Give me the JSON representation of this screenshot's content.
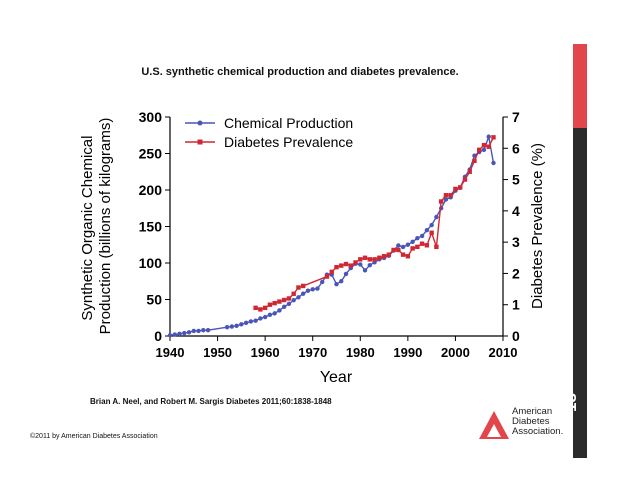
{
  "slide": {
    "title": "U.S. synthetic chemical production and diabetes prevalence.",
    "citation": "Brian A. Neel, and Robert M. Sargis Diabetes 2011;60:1838-1848",
    "copyright": "©2011 by American Diabetes Association",
    "logo_lines": [
      "American",
      "Diabetes",
      "Association."
    ],
    "slide_number": "18"
  },
  "colors": {
    "chemical": "#4a55b8",
    "diabetes": "#d02832",
    "accent_red": "#e2464c",
    "accent_dark": "#2b2b2b"
  },
  "chart_data": {
    "type": "line",
    "title": "",
    "xlabel": "Year",
    "ylabel_left": "Synthetic Organic Chemical Production (billions of kilograms)",
    "ylabel_right": "Diabetes Prevalence (%)",
    "xlim": [
      1940,
      2010
    ],
    "ylim_left": [
      0,
      300
    ],
    "ylim_right": [
      0,
      7
    ],
    "x_ticks": [
      1940,
      1950,
      1960,
      1970,
      1980,
      1990,
      2000,
      2010
    ],
    "y_ticks_left": [
      0,
      50,
      100,
      150,
      200,
      250,
      300
    ],
    "y_ticks_right": [
      0,
      1,
      2,
      3,
      4,
      5,
      6,
      7
    ],
    "grid": false,
    "legend_position": "top-left",
    "series": [
      {
        "name": "Chemical Production",
        "axis": "left",
        "marker": "circle",
        "x": [
          1940,
          1941,
          1942,
          1943,
          1944,
          1945,
          1946,
          1947,
          1948,
          1952,
          1953,
          1954,
          1955,
          1956,
          1957,
          1958,
          1959,
          1960,
          1961,
          1962,
          1963,
          1964,
          1965,
          1966,
          1967,
          1968,
          1969,
          1970,
          1971,
          1972,
          1973,
          1974,
          1975,
          1976,
          1977,
          1978,
          1979,
          1980,
          1981,
          1982,
          1983,
          1984,
          1985,
          1986,
          1987,
          1988,
          1989,
          1990,
          1991,
          1992,
          1993,
          1994,
          1995,
          1996,
          1997,
          1998,
          1999,
          2000,
          2001,
          2002,
          2003,
          2004,
          2005,
          2006,
          2007,
          2008
        ],
        "values": [
          1,
          2,
          3,
          4,
          5,
          7,
          7,
          8,
          8,
          12,
          13,
          14,
          16,
          18,
          20,
          21,
          24,
          26,
          29,
          31,
          35,
          40,
          44,
          49,
          53,
          58,
          62,
          64,
          65,
          74,
          84,
          84,
          71,
          75,
          85,
          93,
          99,
          98,
          90,
          97,
          101,
          105,
          107,
          110,
          117,
          124,
          122,
          125,
          129,
          134,
          137,
          145,
          152,
          163,
          175,
          187,
          190,
          199,
          203,
          218,
          228,
          247,
          252,
          255,
          273,
          237
        ]
      },
      {
        "name": "Diabetes Prevalence",
        "axis": "right",
        "marker": "square",
        "x": [
          1958,
          1959,
          1960,
          1961,
          1962,
          1963,
          1964,
          1965,
          1966,
          1967,
          1968,
          1973,
          1974,
          1975,
          1976,
          1977,
          1978,
          1979,
          1980,
          1981,
          1982,
          1983,
          1984,
          1985,
          1986,
          1987,
          1988,
          1989,
          1990,
          1991,
          1992,
          1993,
          1994,
          1995,
          1996,
          1997,
          1998,
          1999,
          2000,
          2001,
          2002,
          2003,
          2004,
          2005,
          2006,
          2007,
          2008
        ],
        "values": [
          0.9,
          0.85,
          0.9,
          1.0,
          1.05,
          1.1,
          1.15,
          1.2,
          1.35,
          1.55,
          1.6,
          1.9,
          2.05,
          2.2,
          2.25,
          2.3,
          2.25,
          2.35,
          2.45,
          2.5,
          2.45,
          2.45,
          2.5,
          2.55,
          2.6,
          2.75,
          2.75,
          2.6,
          2.55,
          2.8,
          2.85,
          2.95,
          2.9,
          3.3,
          2.85,
          4.3,
          4.5,
          4.5,
          4.7,
          4.75,
          5.0,
          5.25,
          5.6,
          5.95,
          6.1,
          6.05,
          6.35
        ]
      }
    ]
  }
}
